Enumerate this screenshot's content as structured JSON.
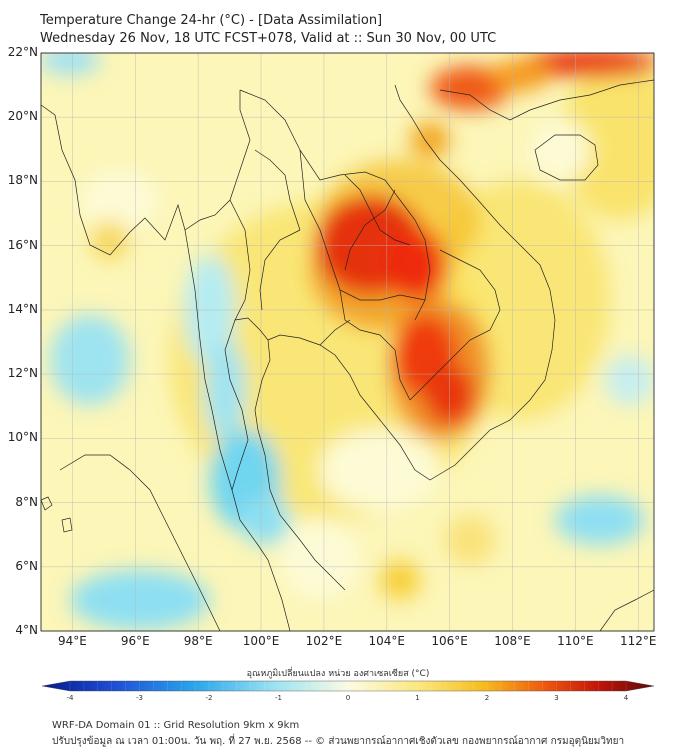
{
  "header": {
    "title_line1": "Temperature Change 24-hr (°C) - [Data Assimilation]",
    "title_line2": "Wednesday 26 Nov, 18 UTC FCST+078, Valid at :: Sun 30 Nov, 00 UTC"
  },
  "map": {
    "lat_range": [
      4,
      22
    ],
    "lon_range": [
      93,
      112.5
    ],
    "lat_labels": [
      "22°N",
      "20°N",
      "18°N",
      "16°N",
      "14°N",
      "12°N",
      "10°N",
      "8°N",
      "6°N",
      "4°N"
    ],
    "lon_labels": [
      "94°E",
      "96°E",
      "98°E",
      "100°E",
      "102°E",
      "104°E",
      "106°E",
      "108°E",
      "110°E",
      "112°E"
    ]
  },
  "colorbar": {
    "title": "อุณหภูมิเปลี่ยนแปลง หน่วย องศาเซลเซียส (°C)",
    "range": [
      -4,
      4
    ],
    "ticks": [
      "-4",
      "-3",
      "-2",
      "-1",
      "0",
      "1",
      "2",
      "3",
      "4"
    ]
  },
  "footer": {
    "line1": "WRF-DA Domain 01 :: Grid Resolution 9km x 9km",
    "line2": "ปรับปรุงข้อมูล ณ เวลา 01:00น. วัน พฤ. ที่ 27 พ.ย. 2568 -- © ส่วนพยากรณ์อากาศเชิงตัวเลข กองพยากรณ์อากาศ กรมอุตุนิยมวิทยา"
  },
  "colors": {
    "cold_max": "#061a8a",
    "cold": "#37c3ec",
    "neutral": "#fbfbd4",
    "warm": "#f7d21e",
    "hot": "#ef2a0a",
    "hot_max": "#5c0a0a"
  }
}
